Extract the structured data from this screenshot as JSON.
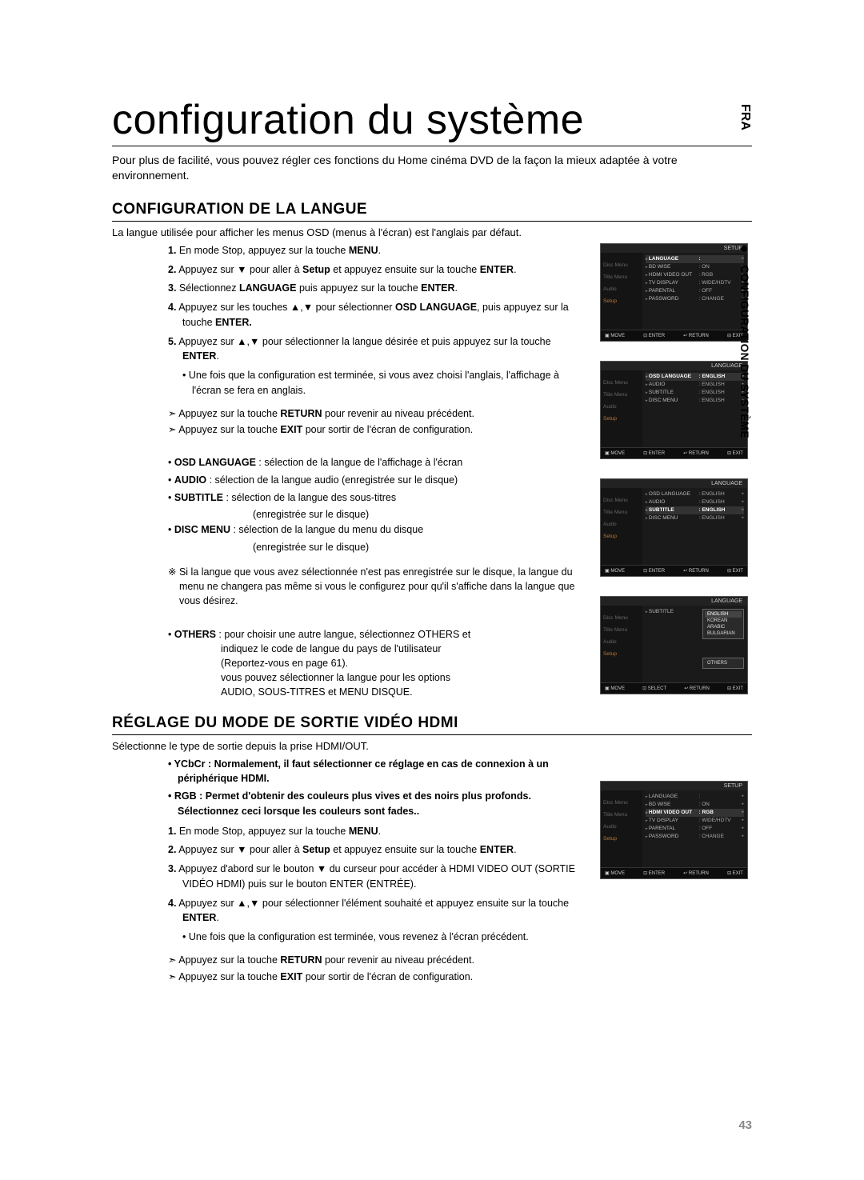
{
  "lang_tab": "FRA",
  "side_tab": "CONFIGURATION DU SYSTÈME",
  "page_title": "configuration du système",
  "intro": "Pour plus de facilité, vous pouvez régler ces fonctions du Home cinéma DVD de la façon la mieux adaptée à votre environnement.",
  "section1": {
    "heading": "CONFIGURATION DE LA LANGUE",
    "subtext": "La langue utilisée pour afficher les menus OSD (menus à l'écran) est l'anglais par défaut.",
    "steps": [
      {
        "n": "1.",
        "text": "En mode Stop, appuyez sur la touche ",
        "bold": "MENU",
        "text2": "."
      },
      {
        "n": "2.",
        "text": "Appuyez sur ▼ pour aller à ",
        "bold": "Setup",
        "text2": " et appuyez ensuite sur la touche ",
        "bold2": "ENTER",
        "text3": "."
      },
      {
        "n": "3.",
        "text": "Sélectionnez ",
        "bold": "LANGUAGE",
        "text2": " puis appuyez sur la touche ",
        "bold2": "ENTER",
        "text3": "."
      },
      {
        "n": "4.",
        "text": "Appuyez sur les touches ▲,▼ pour sélectionner ",
        "bold": "OSD LANGUAGE",
        "text2": ", puis appuyez sur la touche ",
        "bold2": "ENTER.",
        "text3": ""
      },
      {
        "n": "5.",
        "text": "Appuyez sur ▲,▼ pour sélectionner la langue désirée et puis appuyez sur la touche ",
        "bold": "ENTER",
        "text2": "."
      }
    ],
    "substep": "Une fois que la configuration est terminée, si vous avez choisi l'anglais, l'affichage à l'écran se fera en anglais.",
    "return_note": "Appuyez sur la touche RETURN pour revenir au niveau précédent.",
    "exit_note": "Appuyez sur la touche EXIT pour sortir de l'écran de configuration.",
    "defs": [
      {
        "k": "OSD LANGUAGE",
        "v": " : sélection de la langue de l'affichage à l'écran"
      },
      {
        "k": "AUDIO",
        "v": " : sélection de la langue audio (enregistrée sur le disque)"
      },
      {
        "k": "SUBTITLE",
        "v": " : sélection de la langue des sous-titres",
        "v2": "(enregistrée sur le disque)"
      },
      {
        "k": "DISC MENU",
        "v": " : sélection de la langue du menu du disque",
        "v2": "(enregistrée sur le disque)"
      }
    ],
    "note": "Si la langue que vous avez sélectionnée n'est pas enregistrée sur le disque, la langue du menu ne changera pas même si vous le configurez pour qu'il s'affiche dans la langue que vous désirez.",
    "others": {
      "k": "OTHERS",
      "lines": [
        " : pour choisir une autre langue, sélectionnez OTHERS et",
        "indiquez le code de langue du pays de l'utilisateur",
        "(Reportez-vous en page 61).",
        "  vous pouvez sélectionner la langue pour les options",
        "  AUDIO, SOUS-TITRES et MENU DISQUE."
      ]
    }
  },
  "section2": {
    "heading": "RÉGLAGE DU MODE DE SORTIE VIDÉO HDMI",
    "subtext": "Sélectionne le type de sortie depuis la prise HDMI/OUT.",
    "prebullets": [
      "YCbCr : Normalement, il faut sélectionner ce réglage en cas de connexion à un périphérique HDMI.",
      "RGB : Permet d'obtenir des couleurs plus vives et des noirs plus profonds. Sélectionnez ceci lorsque les couleurs sont fades.."
    ],
    "steps": [
      {
        "n": "1.",
        "text": "En mode Stop, appuyez sur la touche ",
        "bold": "MENU",
        "text2": "."
      },
      {
        "n": "2.",
        "text": "Appuyez sur ▼ pour aller à ",
        "bold": "Setup",
        "text2": " et appuyez ensuite sur la touche ",
        "bold2": "ENTER",
        "text3": "."
      },
      {
        "n": "3.",
        "text": "Appuyez d'abord sur le bouton ▼ du curseur pour accéder à HDMI VIDEO OUT (SORTIE VIDÉO HDMI) puis sur le bouton ENTER (ENTRÉE)."
      },
      {
        "n": "4.",
        "text": "Appuyez sur ▲,▼ pour sélectionner l'élément souhaité et appuyez ensuite sur la touche ",
        "bold": "ENTER",
        "text2": "."
      }
    ],
    "substep": "Une fois que la configuration est terminée, vous revenez à l'écran précédent.",
    "return_note": "Appuyez sur la touche RETURN pour revenir au niveau précédent.",
    "exit_note": "Appuyez sur la touche EXIT pour sortir de l'écran de configuration."
  },
  "osd": {
    "tabs": [
      "",
      "Disc Menu",
      "Title Menu",
      "Audio",
      "Setup"
    ],
    "setup_title": "SETUP",
    "lang_title": "LANGUAGE",
    "footer": {
      "move": "MOVE",
      "enter": "ENTER",
      "return": "RETURN",
      "exit": "EXIT",
      "select": "SELECT"
    },
    "screen1": [
      {
        "k": "LANGUAGE",
        "v": "",
        "hl": true
      },
      {
        "k": "BD WISE",
        "v": "ON"
      },
      {
        "k": "HDMI VIDEO OUT",
        "v": "RGB"
      },
      {
        "k": "TV DISPLAY",
        "v": "WIDE/HDTV"
      },
      {
        "k": "PARENTAL",
        "v": "OFF"
      },
      {
        "k": "PASSWORD",
        "v": "CHANGE"
      }
    ],
    "screen2": [
      {
        "k": "OSD LANGUAGE",
        "v": "ENGLISH",
        "hl": true
      },
      {
        "k": "AUDIO",
        "v": "ENGLISH"
      },
      {
        "k": "SUBTITLE",
        "v": "ENGLISH"
      },
      {
        "k": "DISC MENU",
        "v": "ENGLISH"
      }
    ],
    "screen3": [
      {
        "k": "OSD LANGUAGE",
        "v": "ENGLISH"
      },
      {
        "k": "AUDIO",
        "v": "ENGLISH"
      },
      {
        "k": "SUBTITLE",
        "v": "ENGLISH",
        "hl": true
      },
      {
        "k": "DISC MENU",
        "v": "ENGLISH"
      }
    ],
    "screen4": {
      "rows": [
        {
          "k": "SUBTITLE",
          "v": ""
        }
      ],
      "popup": [
        "ENGLISH",
        "KOREAN",
        "ARABIC",
        "BULGARIAN"
      ],
      "others": "OTHERS"
    },
    "screen5": [
      {
        "k": "LANGUAGE",
        "v": ""
      },
      {
        "k": "BD WISE",
        "v": "ON"
      },
      {
        "k": "HDMI VIDEO OUT",
        "v": "RGB",
        "hl": true
      },
      {
        "k": "TV DISPLAY",
        "v": "WIDE/HDTV"
      },
      {
        "k": "PARENTAL",
        "v": "OFF"
      },
      {
        "k": "PASSWORD",
        "v": "CHANGE"
      }
    ]
  },
  "page_number": "43"
}
